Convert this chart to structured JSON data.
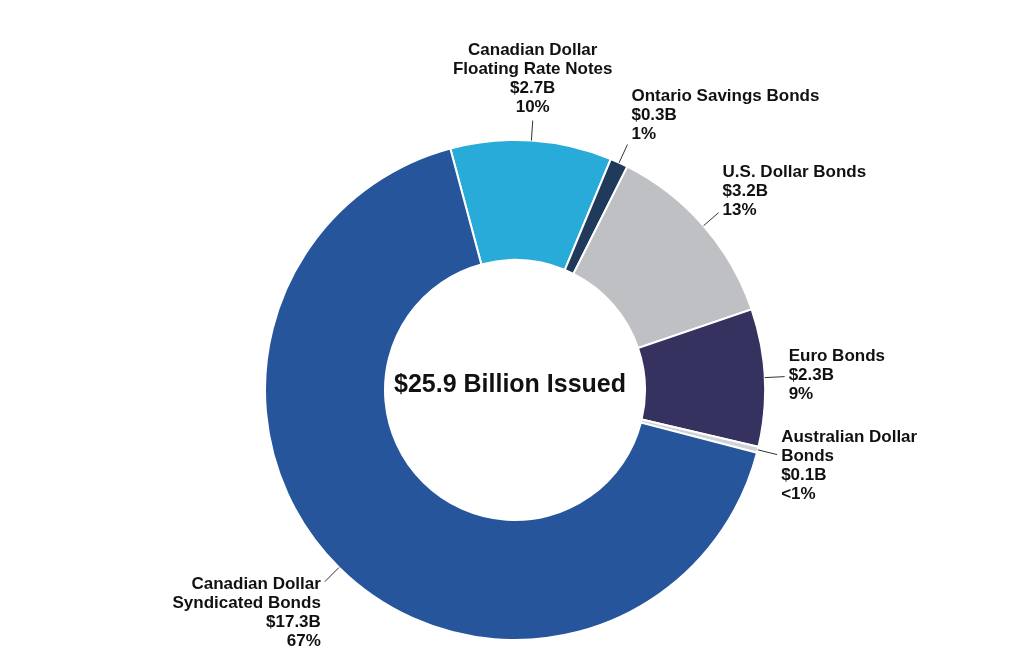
{
  "chart_data": {
    "type": "donut",
    "categories": [
      "Canadian Dollar Floating Rate Notes",
      "Ontario Savings Bonds",
      "U.S. Dollar Bonds",
      "Euro Bonds",
      "Australian Dollar Bonds",
      "Canadian Dollar Syndicated Bonds"
    ],
    "values": [
      2.7,
      0.3,
      3.2,
      2.3,
      0.1,
      17.3
    ],
    "colors": [
      "#29abd9",
      "#1f3a5a",
      "#bfc0c4",
      "#35325f",
      "#cfd3d9",
      "#26559b"
    ],
    "value_labels": [
      "$2.7B",
      "$0.3B",
      "$3.2B",
      "$2.3B",
      "$0.1B",
      "$17.3B"
    ],
    "annotations": [
      "$25.9 Billion Issued",
      {
        "text": "10%",
        "x": "Canadian Dollar Floating Rate Notes"
      },
      {
        "text": "1%",
        "x": "Ontario Savings Bonds"
      },
      {
        "text": "13%",
        "x": "U.S. Dollar Bonds"
      },
      {
        "text": "9%",
        "x": "Euro Bonds"
      },
      {
        "text": "<1%",
        "x": "Australian Dollar Bonds"
      },
      {
        "text": "67%",
        "x": "Canadian Dollar Syndicated Bonds"
      }
    ],
    "legend": false
  }
}
